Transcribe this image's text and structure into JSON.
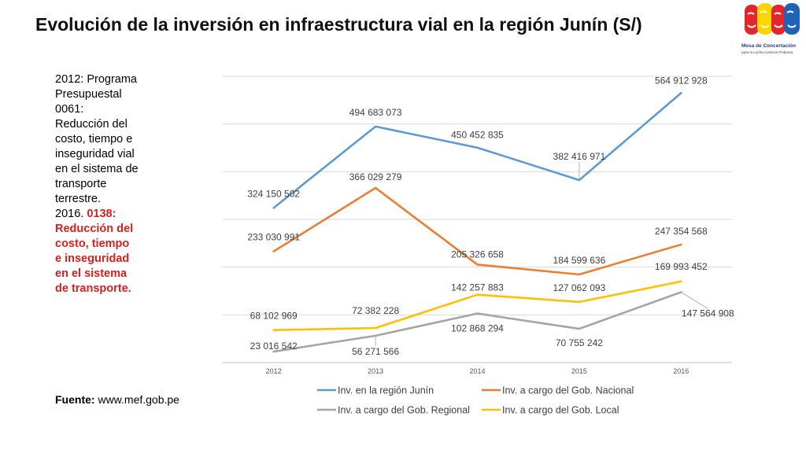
{
  "slide": {
    "title": "Evolución de la inversión en infraestructura vial en la región Junín (S/)",
    "note_lines": [
      "2012: Programa",
      "Presupuestal",
      "0061:",
      "Reducción del",
      "costo, tiempo e",
      "inseguridad vial",
      "en el sistema de",
      "transporte",
      "terrestre."
    ],
    "note_year2": "2016.",
    "note_red_lines": [
      "0138:",
      "Reducción del",
      "costo, tiempo",
      "e inseguridad",
      "en el sistema",
      "de transporte."
    ],
    "source_label": "Fuente:",
    "source_url": "www.mef.gob.pe",
    "logo_text_1": "Mesa de Concertación",
    "logo_text_2": "para la Lucha contra la Pobreza"
  },
  "chart_data": {
    "type": "line",
    "categories": [
      "2012",
      "2013",
      "2014",
      "2015",
      "2016"
    ],
    "ylim": [
      0,
      600000000
    ],
    "grid": true,
    "legend_position": "bottom",
    "series": [
      {
        "name": "Inv. en la región Junín",
        "color": "#5b9bd5",
        "values": [
          324150502,
          494683073,
          450452835,
          382416971,
          564912928
        ],
        "labels": [
          "324 150 502",
          "494 683 073",
          "450 452 835",
          "382 416 971",
          "564 912 928"
        ]
      },
      {
        "name": "Inv. a cargo del Gob. Nacional",
        "color": "#ed7d31",
        "values": [
          233030991,
          366029279,
          205326658,
          184599636,
          247354568
        ],
        "labels": [
          "233 030 991",
          "366 029 279",
          "205 326 658",
          "184 599 636",
          "247 354 568"
        ]
      },
      {
        "name": "Inv. a cargo del Gob. Regional",
        "color": "#a5a5a5",
        "values": [
          23016542,
          56271566,
          102868294,
          70755242,
          147564908
        ],
        "labels": [
          "23 016 542",
          "56 271 566",
          "102 868 294",
          "70 755 242",
          "147 564 908"
        ]
      },
      {
        "name": "Inv. a cargo del Gob. Local",
        "color": "#ffc000",
        "values": [
          68102969,
          72382228,
          142257883,
          127062093,
          169993452
        ],
        "labels": [
          "68 102 969",
          "72 382 228",
          "142 257 883",
          "127 062 093",
          "169 993 452"
        ]
      }
    ]
  }
}
